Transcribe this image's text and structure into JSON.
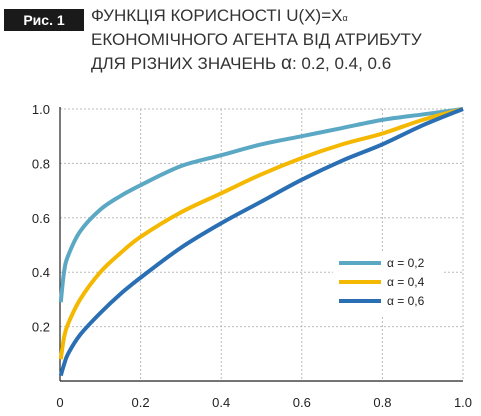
{
  "figure": {
    "badge": "Рис. 1",
    "title_line1_prefix": "ФУНКЦІЯ КОРИСНОСТІ U(X)=X",
    "title_line1_sup": "α",
    "title_line2": "ЕКОНОМІЧНОГО АГЕНТА ВІД АТРИБУТУ",
    "title_line3_prefix": "ДЛЯ РІЗНИХ ЗНАЧЕНЬ ",
    "title_line3_alpha": "α",
    "title_line3_suffix": ": 0.2, 0.4, 0.6"
  },
  "chart_data": {
    "type": "line",
    "title": "ФУНКЦІЯ КОРИСНОСТІ U(X)=X^α ЕКОНОМІЧНОГО АГЕНТА ВІД АТРИБУТУ ДЛЯ РІЗНИХ ЗНАЧЕНЬ α: 0.2, 0.4, 0.6",
    "xlabel": "",
    "ylabel": "",
    "xlim": [
      0,
      1.0
    ],
    "ylim": [
      0,
      1.0
    ],
    "x_ticks": [
      0,
      0.2,
      0.4,
      0.6,
      0.8,
      1.0
    ],
    "x_tick_labels": [
      "0",
      "0.2",
      "0.4",
      "0.6",
      "0.8",
      "1.0"
    ],
    "y_ticks": [
      0.2,
      0.4,
      0.6,
      0.8,
      1.0
    ],
    "y_tick_labels": [
      "0.2",
      "0.4",
      "0.6",
      "0.8",
      "1.0"
    ],
    "grid": true,
    "legend_position": "right",
    "x": [
      0.002,
      0.01,
      0.02,
      0.05,
      0.1,
      0.15,
      0.2,
      0.3,
      0.4,
      0.5,
      0.6,
      0.7,
      0.8,
      0.9,
      1.0
    ],
    "series": [
      {
        "name": "α = 0,2",
        "color": "#5ba8c4",
        "values": [
          0.29,
          0.4,
          0.46,
          0.55,
          0.63,
          0.68,
          0.72,
          0.79,
          0.83,
          0.87,
          0.9,
          0.93,
          0.96,
          0.98,
          1.0
        ]
      },
      {
        "name": "α = 0,4",
        "color": "#f5b800",
        "values": [
          0.08,
          0.16,
          0.21,
          0.3,
          0.4,
          0.47,
          0.53,
          0.62,
          0.69,
          0.76,
          0.82,
          0.87,
          0.91,
          0.96,
          1.0
        ]
      },
      {
        "name": "α = 0,6",
        "color": "#2a6fb3",
        "values": [
          0.02,
          0.06,
          0.1,
          0.17,
          0.25,
          0.32,
          0.38,
          0.49,
          0.58,
          0.66,
          0.74,
          0.81,
          0.87,
          0.94,
          1.0
        ]
      }
    ]
  }
}
